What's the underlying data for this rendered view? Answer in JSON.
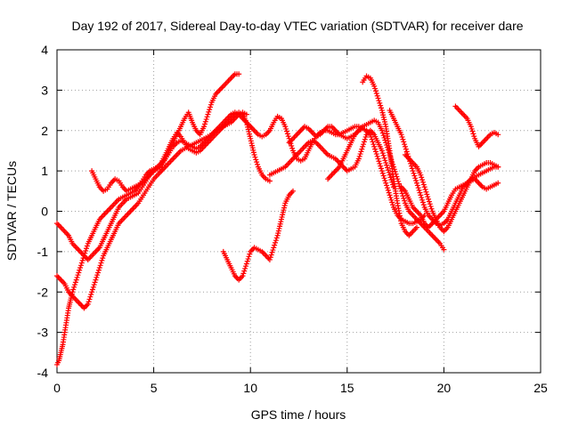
{
  "chart_data": {
    "type": "scatter",
    "title": "Day 192 of 2017, Sidereal Day-to-day VTEC variation (SDTVAR) for receiver dare",
    "xlabel": "GPS time / hours",
    "ylabel": "SDTVAR / TECUs",
    "xlim": [
      0,
      25
    ],
    "ylim": [
      -4,
      4
    ],
    "xticks": [
      "0",
      "5",
      "10",
      "15",
      "20",
      "25"
    ],
    "yticks": [
      "-4",
      "-3",
      "-2",
      "-1",
      "0",
      "1",
      "2",
      "3",
      "4"
    ],
    "grid": true,
    "marker": "plus",
    "color": "#ff0000",
    "series": [
      {
        "x": [
          0.0,
          0.2,
          0.4,
          0.6,
          0.8,
          1.0,
          1.2,
          1.4,
          1.6,
          1.8,
          2.0,
          2.2,
          2.4,
          2.6,
          2.8,
          3.0,
          3.2,
          3.4,
          3.6,
          3.8,
          4.0,
          4.2,
          4.4,
          4.6,
          4.8,
          5.0,
          5.2,
          5.4,
          5.6,
          5.8,
          6.0,
          6.2,
          6.4,
          6.6,
          6.8,
          7.0,
          7.2,
          7.4,
          7.6,
          7.8,
          8.0,
          8.2,
          8.4,
          8.6,
          8.8,
          9.0,
          9.2,
          9.4
        ],
        "y": [
          -0.3,
          -0.4,
          -0.5,
          -0.6,
          -0.8,
          -0.9,
          -1.0,
          -1.1,
          -1.2,
          -1.1,
          -1.0,
          -0.9,
          -0.7,
          -0.5,
          -0.3,
          -0.1,
          0.1,
          0.2,
          0.3,
          0.35,
          0.4,
          0.45,
          0.6,
          0.75,
          0.9,
          1.0,
          1.05,
          1.1,
          1.3,
          1.5,
          1.7,
          1.9,
          2.1,
          2.3,
          2.45,
          2.2,
          2.0,
          1.9,
          2.1,
          2.4,
          2.7,
          2.9,
          3.0,
          3.1,
          3.2,
          3.3,
          3.4,
          3.4
        ]
      },
      {
        "x": [
          0.0,
          0.1,
          0.2,
          0.3,
          0.4,
          0.5,
          0.6,
          0.7,
          0.8,
          1.0,
          1.2,
          1.4,
          1.6,
          1.8,
          2.0,
          2.2,
          2.4,
          2.6,
          2.8,
          3.0,
          3.2,
          3.4,
          3.6,
          3.8,
          4.0,
          4.2,
          4.4,
          4.6,
          4.8,
          5.0,
          5.2,
          5.4,
          5.6,
          5.8,
          6.0,
          6.2,
          6.4,
          6.6,
          6.8,
          7.0,
          7.2,
          7.4,
          7.6,
          7.8,
          8.0,
          8.2,
          8.4,
          8.6,
          8.8,
          9.0,
          9.2,
          9.4,
          9.6,
          9.8
        ],
        "y": [
          -3.8,
          -3.7,
          -3.5,
          -3.3,
          -3.0,
          -2.7,
          -2.4,
          -2.2,
          -2.0,
          -1.7,
          -1.4,
          -1.1,
          -0.8,
          -0.6,
          -0.4,
          -0.2,
          -0.1,
          0.0,
          0.1,
          0.2,
          0.3,
          0.35,
          0.4,
          0.45,
          0.5,
          0.6,
          0.75,
          0.9,
          1.0,
          1.05,
          1.1,
          1.2,
          1.3,
          1.45,
          1.6,
          1.7,
          1.75,
          1.7,
          1.65,
          1.6,
          1.55,
          1.6,
          1.7,
          1.8,
          1.9,
          2.0,
          2.05,
          2.1,
          2.15,
          2.2,
          2.3,
          2.4,
          2.45,
          2.4
        ]
      },
      {
        "x": [
          0.0,
          0.2,
          0.4,
          0.6,
          0.8,
          1.0,
          1.2,
          1.4,
          1.6,
          1.8,
          2.0,
          2.2,
          2.4,
          2.6,
          2.8,
          3.0,
          3.2,
          3.4,
          3.6,
          3.8,
          4.0,
          4.2,
          4.4,
          4.6,
          4.8,
          5.0,
          5.2,
          5.4,
          5.6,
          5.8,
          6.0,
          6.2,
          6.4,
          6.6,
          6.8,
          7.0,
          7.2,
          7.4,
          7.6,
          7.8,
          8.0,
          8.2,
          8.4,
          8.6,
          8.8,
          9.0,
          9.2,
          9.4,
          9.6,
          9.8,
          10.0
        ],
        "y": [
          -1.6,
          -1.7,
          -1.8,
          -2.0,
          -2.1,
          -2.2,
          -2.3,
          -2.4,
          -2.3,
          -2.0,
          -1.7,
          -1.4,
          -1.1,
          -0.9,
          -0.7,
          -0.5,
          -0.3,
          -0.2,
          -0.1,
          0.0,
          0.1,
          0.2,
          0.35,
          0.5,
          0.65,
          0.8,
          0.9,
          1.0,
          1.1,
          1.2,
          1.3,
          1.4,
          1.5,
          1.55,
          1.6,
          1.65,
          1.7,
          1.75,
          1.8,
          1.85,
          1.9,
          2.0,
          2.1,
          2.2,
          2.3,
          2.4,
          2.45,
          2.4,
          2.3,
          2.2,
          2.1
        ]
      },
      {
        "x": [
          1.8,
          2.0,
          2.2,
          2.4,
          2.6,
          2.8,
          3.0,
          3.2,
          3.4,
          3.6,
          3.8,
          4.0,
          4.2,
          4.4,
          4.6,
          4.8,
          5.0,
          5.2,
          5.4,
          5.6,
          5.8,
          6.0,
          6.2,
          6.4,
          6.6,
          6.8,
          7.0,
          7.2,
          7.4,
          7.6,
          7.8,
          8.0,
          8.2,
          8.4,
          8.6,
          8.8,
          9.0,
          9.2,
          9.4,
          9.6,
          9.8,
          10.0,
          10.2,
          10.4,
          10.6,
          10.8,
          11.0
        ],
        "y": [
          1.0,
          0.8,
          0.6,
          0.5,
          0.55,
          0.7,
          0.8,
          0.75,
          0.6,
          0.5,
          0.55,
          0.6,
          0.65,
          0.7,
          0.8,
          0.9,
          1.0,
          1.1,
          1.2,
          1.4,
          1.6,
          1.8,
          1.95,
          1.85,
          1.7,
          1.55,
          1.5,
          1.45,
          1.5,
          1.6,
          1.7,
          1.8,
          1.9,
          2.0,
          2.1,
          2.2,
          2.3,
          2.4,
          2.45,
          2.4,
          2.2,
          1.8,
          1.4,
          1.1,
          0.9,
          0.8,
          0.75
        ]
      },
      {
        "x": [
          8.6,
          8.8,
          9.0,
          9.2,
          9.4,
          9.6,
          9.8,
          10.0,
          10.2,
          10.4,
          10.6,
          10.8,
          11.0,
          11.2,
          11.4,
          11.6,
          11.8,
          12.0,
          12.2
        ],
        "y": [
          -1.0,
          -1.2,
          -1.4,
          -1.6,
          -1.7,
          -1.6,
          -1.3,
          -1.0,
          -0.9,
          -0.95,
          -1.0,
          -1.1,
          -1.2,
          -0.9,
          -0.6,
          -0.2,
          0.2,
          0.4,
          0.5
        ]
      },
      {
        "x": [
          10.0,
          10.2,
          10.4,
          10.6,
          10.8,
          11.0,
          11.2,
          11.4,
          11.6,
          11.8,
          12.0,
          12.2,
          12.4,
          12.6,
          12.8,
          13.0,
          13.2,
          13.4,
          13.6,
          13.8,
          14.0,
          14.2,
          14.4,
          14.6,
          14.8,
          15.0,
          15.2,
          15.4,
          15.6,
          15.8,
          16.0
        ],
        "y": [
          2.1,
          2.0,
          1.9,
          1.85,
          1.9,
          2.0,
          2.2,
          2.35,
          2.3,
          2.1,
          1.8,
          1.5,
          1.3,
          1.25,
          1.3,
          1.5,
          1.7,
          1.85,
          1.95,
          2.0,
          2.0,
          1.95,
          1.9,
          1.9,
          1.95,
          2.0,
          2.05,
          2.1,
          2.1,
          2.05,
          2.0
        ]
      },
      {
        "x": [
          11.0,
          11.2,
          11.4,
          11.6,
          11.8,
          12.0,
          12.2,
          12.4,
          12.6,
          12.8,
          13.0,
          13.2,
          13.4,
          13.6,
          13.8,
          14.0,
          14.2,
          14.4,
          14.6,
          14.8,
          15.0,
          15.2,
          15.4,
          15.6,
          15.8,
          16.0,
          16.2,
          16.4,
          16.6,
          16.8,
          17.0,
          17.2,
          17.4
        ],
        "y": [
          0.9,
          0.95,
          1.0,
          1.05,
          1.1,
          1.2,
          1.3,
          1.4,
          1.5,
          1.6,
          1.7,
          1.75,
          1.7,
          1.6,
          1.5,
          1.4,
          1.35,
          1.3,
          1.2,
          1.1,
          1.0,
          1.05,
          1.1,
          1.3,
          1.6,
          1.9,
          2.0,
          1.9,
          1.7,
          1.5,
          1.2,
          0.9,
          0.6
        ]
      },
      {
        "x": [
          12.0,
          12.2,
          12.4,
          12.6,
          12.8,
          13.0,
          13.2,
          13.4,
          13.6,
          13.8,
          14.0,
          14.2,
          14.4,
          14.6,
          14.8,
          15.0,
          15.2,
          15.4,
          15.6,
          15.8,
          16.0,
          16.2,
          16.4,
          16.6,
          16.8,
          17.0,
          17.2,
          17.4,
          17.6,
          17.8,
          18.0,
          18.2,
          18.4,
          18.6,
          18.8,
          19.0
        ],
        "y": [
          1.7,
          1.8,
          1.9,
          2.0,
          2.1,
          2.05,
          1.95,
          1.85,
          1.9,
          2.0,
          2.1,
          2.1,
          2.0,
          1.9,
          1.85,
          1.8,
          1.85,
          1.9,
          2.0,
          2.05,
          2.0,
          1.9,
          1.6,
          1.3,
          1.0,
          0.7,
          0.4,
          0.1,
          -0.1,
          -0.2,
          -0.25,
          -0.3,
          -0.3,
          -0.25,
          -0.2,
          -0.1
        ]
      },
      {
        "x": [
          14.0,
          14.2,
          14.4,
          14.6,
          14.8,
          15.0,
          15.2,
          15.4,
          15.6,
          15.8,
          16.0,
          16.2,
          16.4,
          16.6,
          16.8,
          17.0,
          17.2,
          17.4,
          17.6,
          17.8,
          18.0,
          18.2,
          18.4,
          18.6,
          18.8,
          19.0,
          19.2,
          19.4,
          19.6,
          19.8,
          20.0
        ],
        "y": [
          0.8,
          0.9,
          1.0,
          1.1,
          1.3,
          1.5,
          1.7,
          1.9,
          2.0,
          2.1,
          2.15,
          2.2,
          2.25,
          2.2,
          2.0,
          1.7,
          1.4,
          1.1,
          0.8,
          0.5,
          0.2,
          0.0,
          -0.1,
          -0.2,
          -0.3,
          -0.4,
          -0.5,
          -0.6,
          -0.7,
          -0.8,
          -0.95
        ]
      },
      {
        "x": [
          15.8,
          16.0,
          16.2,
          16.4,
          16.6,
          16.8,
          17.0,
          17.2,
          17.4,
          17.6,
          17.8,
          18.0,
          18.2,
          18.4,
          18.6
        ],
        "y": [
          3.2,
          3.35,
          3.3,
          3.1,
          2.8,
          2.5,
          2.1,
          1.5,
          0.8,
          0.2,
          -0.3,
          -0.5,
          -0.6,
          -0.5,
          -0.4
        ]
      },
      {
        "x": [
          17.2,
          17.4,
          17.6,
          17.8,
          18.0,
          18.2,
          18.4,
          18.6,
          18.8,
          19.0,
          19.2,
          19.4,
          19.6,
          19.8,
          20.0,
          20.2,
          20.4,
          20.6,
          20.8,
          21.0,
          21.2,
          21.4,
          21.6,
          21.8,
          22.0,
          22.2,
          22.4,
          22.6,
          22.8
        ],
        "y": [
          2.5,
          2.3,
          2.1,
          1.9,
          1.6,
          1.3,
          1.0,
          0.7,
          0.4,
          0.1,
          -0.1,
          -0.2,
          -0.3,
          -0.35,
          -0.3,
          -0.2,
          0.0,
          0.2,
          0.4,
          0.6,
          0.7,
          0.8,
          0.85,
          0.9,
          0.95,
          1.0,
          1.05,
          1.1,
          1.1
        ]
      },
      {
        "x": [
          17.8,
          18.0,
          18.2,
          18.4,
          18.6,
          18.8,
          19.0,
          19.2,
          19.4,
          19.6,
          19.8,
          20.0,
          20.2,
          20.4,
          20.6,
          20.8,
          21.0,
          21.2,
          21.4,
          21.6,
          21.8,
          22.0,
          22.2,
          22.4,
          22.6,
          22.8
        ],
        "y": [
          0.6,
          0.5,
          0.3,
          0.1,
          0.0,
          -0.1,
          -0.3,
          -0.4,
          -0.3,
          -0.2,
          -0.1,
          0.0,
          0.2,
          0.4,
          0.55,
          0.6,
          0.65,
          0.7,
          0.75,
          0.8,
          0.7,
          0.6,
          0.55,
          0.6,
          0.65,
          0.7
        ]
      },
      {
        "x": [
          18.0,
          18.2,
          18.4,
          18.6,
          18.8,
          19.0,
          19.2,
          19.4,
          19.6,
          19.8,
          20.0,
          20.2,
          20.4,
          20.6,
          20.8,
          21.0,
          21.2,
          21.4,
          21.6,
          21.8,
          22.0,
          22.2,
          22.4,
          22.6,
          22.8
        ],
        "y": [
          1.4,
          1.3,
          1.2,
          1.1,
          0.9,
          0.6,
          0.3,
          0.0,
          -0.2,
          -0.4,
          -0.5,
          -0.4,
          -0.2,
          0.0,
          0.2,
          0.4,
          0.6,
          0.8,
          1.0,
          1.1,
          1.15,
          1.2,
          1.2,
          1.15,
          1.1
        ]
      },
      {
        "x": [
          20.6,
          20.8,
          21.0,
          21.2,
          21.4,
          21.6,
          21.8,
          22.0,
          22.2,
          22.4,
          22.6,
          22.8
        ],
        "y": [
          2.6,
          2.5,
          2.4,
          2.3,
          2.1,
          1.8,
          1.6,
          1.7,
          1.8,
          1.9,
          1.95,
          1.9
        ]
      }
    ]
  }
}
